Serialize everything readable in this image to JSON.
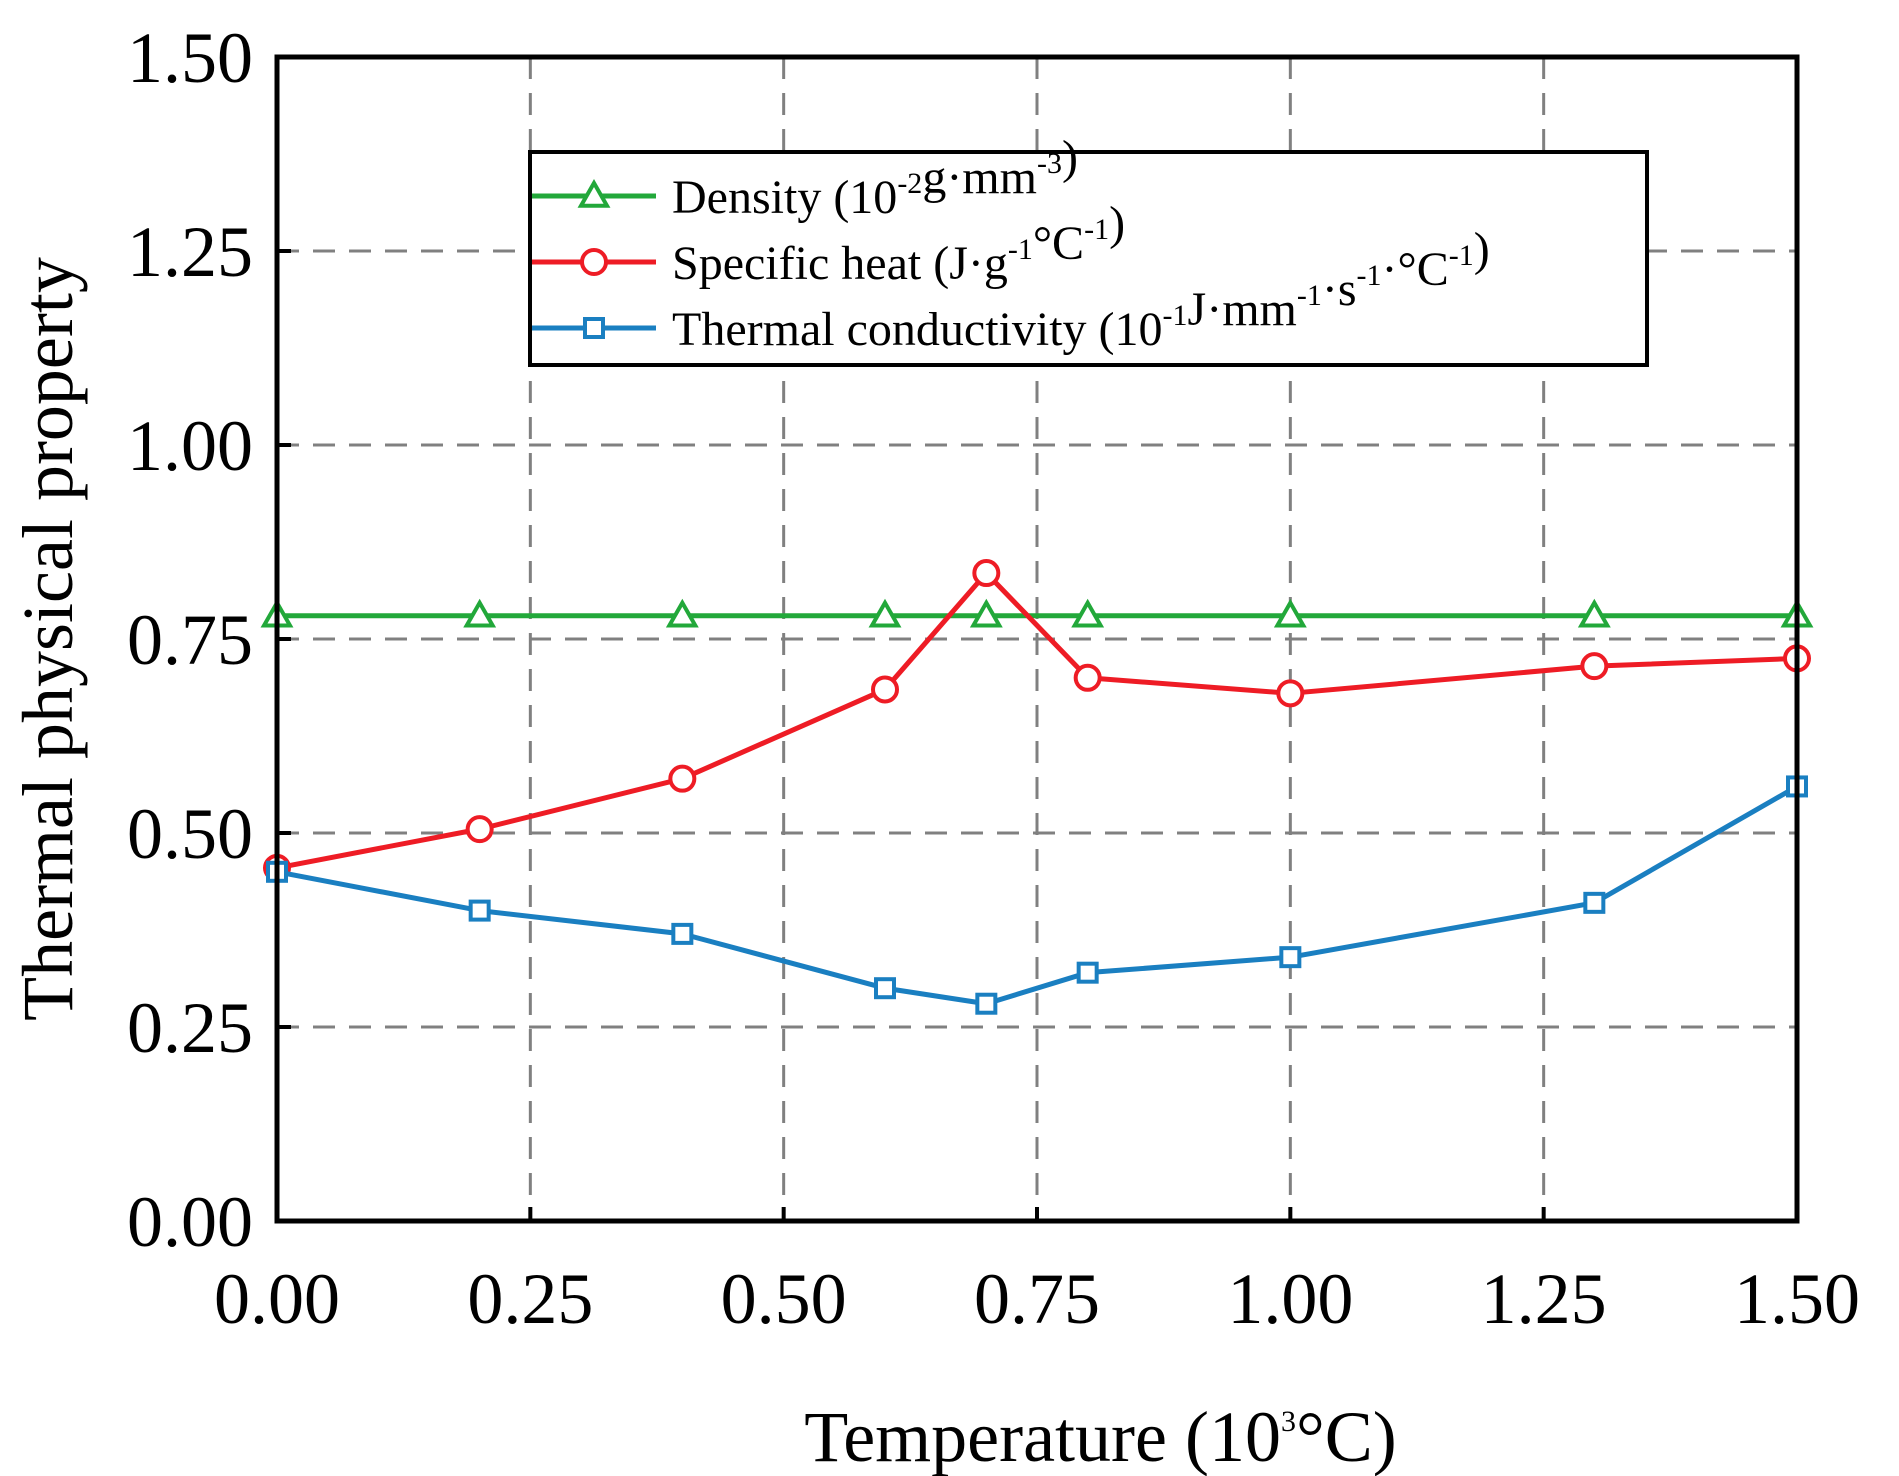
{
  "chart_data": {
    "type": "line",
    "title": "",
    "xlabel": {
      "main": "Temperature (10",
      "sup": "3",
      "unit": "°C)"
    },
    "ylabel": "Thermal physical property",
    "xlim": [
      0,
      1.5
    ],
    "ylim": [
      0,
      1.5
    ],
    "x_ticks": [
      "0.00",
      "0.25",
      "0.50",
      "0.75",
      "1.00",
      "1.25",
      "1.50"
    ],
    "y_ticks": [
      "0.00",
      "0.25",
      "0.50",
      "0.75",
      "1.00",
      "1.25",
      "1.50"
    ],
    "x_tick_values": [
      0,
      0.25,
      0.5,
      0.75,
      1.0,
      1.25,
      1.5
    ],
    "y_tick_values": [
      0,
      0.25,
      0.5,
      0.75,
      1.0,
      1.25,
      1.5
    ],
    "grid": true,
    "legend_position": "top-center",
    "series": [
      {
        "name": "Density",
        "legend": [
          {
            "t": "Density (10"
          },
          {
            "t": "-2",
            "sup": true
          },
          {
            "t": "g·mm"
          },
          {
            "t": "-3",
            "sup": true
          },
          {
            "t": ")"
          }
        ],
        "color": "#22a83a",
        "marker": "triangle",
        "x": [
          0,
          0.2,
          0.4,
          0.6,
          0.7,
          0.8,
          1.0,
          1.3,
          1.5
        ],
        "y": [
          0.78,
          0.78,
          0.78,
          0.78,
          0.78,
          0.78,
          0.78,
          0.78,
          0.78
        ]
      },
      {
        "name": "Specific heat",
        "legend": [
          {
            "t": "Specific heat (J·g"
          },
          {
            "t": "-1",
            "sup": true
          },
          {
            "t": "°C"
          },
          {
            "t": "-1",
            "sup": true
          },
          {
            "t": ")"
          }
        ],
        "color": "#ee1c25",
        "marker": "circle",
        "x": [
          0,
          0.2,
          0.4,
          0.6,
          0.7,
          0.8,
          1.0,
          1.3,
          1.5
        ],
        "y": [
          0.455,
          0.505,
          0.57,
          0.685,
          0.835,
          0.7,
          0.68,
          0.715,
          0.725
        ]
      },
      {
        "name": "Thermal conductivity",
        "legend": [
          {
            "t": "Thermal conductivity (10"
          },
          {
            "t": "-1",
            "sup": true
          },
          {
            "t": "J·mm"
          },
          {
            "t": "-1",
            "sup": true
          },
          {
            "t": "·s"
          },
          {
            "t": "-1",
            "sup": true
          },
          {
            "t": "·°C"
          },
          {
            "t": "-1",
            "sup": true
          },
          {
            "t": ")"
          }
        ],
        "color": "#1a7fc1",
        "marker": "square",
        "x": [
          0,
          0.2,
          0.4,
          0.6,
          0.7,
          0.8,
          1.0,
          1.3,
          1.5
        ],
        "y": [
          0.45,
          0.4,
          0.37,
          0.3,
          0.28,
          0.32,
          0.34,
          0.41,
          0.56
        ]
      }
    ]
  }
}
